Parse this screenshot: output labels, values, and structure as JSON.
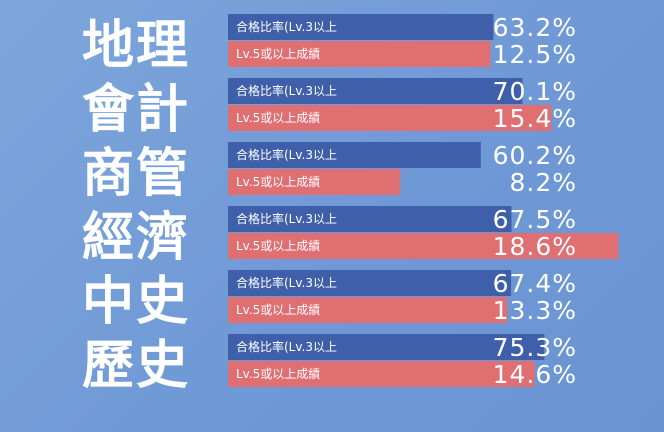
{
  "chart_data": {
    "type": "bar",
    "orientation": "horizontal",
    "categories": [
      "地理",
      "會計",
      "商管",
      "經濟",
      "中史",
      "歷史"
    ],
    "series": [
      {
        "name": "合格比率(Lv.3以上",
        "color": "#3f5fab",
        "values": [
          63.2,
          70.1,
          60.2,
          67.5,
          67.4,
          75.3
        ],
        "labels": [
          "63.2%",
          "70.1%",
          "60.2%",
          "67.5%",
          "67.4%",
          "75.3%"
        ]
      },
      {
        "name": "Lv.5或以上成績",
        "color": "#e06f72",
        "values": [
          12.5,
          15.4,
          8.2,
          18.6,
          13.3,
          14.6
        ],
        "labels": [
          "12.5%",
          "15.4%",
          "8.2%",
          "18.6%",
          "13.3%",
          "14.6%"
        ]
      }
    ],
    "legend": "inside-bars",
    "grid": false
  }
}
